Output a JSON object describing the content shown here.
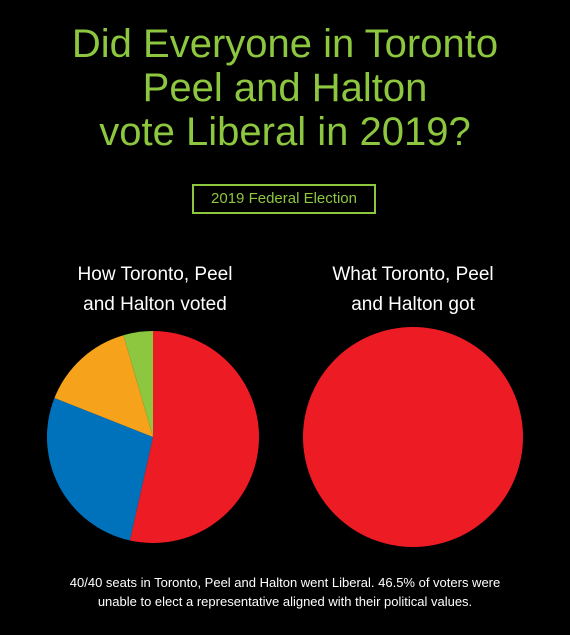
{
  "title_lines": [
    "Did Everyone in Toronto",
    "Peel and Halton",
    "vote Liberal in 2019?"
  ],
  "subtitle": "2019 Federal Election",
  "chart_data": [
    {
      "type": "pie",
      "title_lines": [
        "How Toronto, Peel",
        "and Halton voted"
      ],
      "slices": [
        {
          "value": 53.5,
          "color": "#ed1c24"
        },
        {
          "value": 27.5,
          "color": "#0072bc"
        },
        {
          "value": 14.5,
          "color": "#f7a21b"
        },
        {
          "value": 4.5,
          "color": "#8dc63f"
        }
      ]
    },
    {
      "type": "pie",
      "title_lines": [
        "What Toronto, Peel",
        "and Halton got"
      ],
      "slices": [
        {
          "value": 100,
          "color": "#ed1c24"
        }
      ]
    }
  ],
  "footer_lines": [
    "40/40 seats in Toronto, Peel and Halton went Liberal. 46.5% of voters were",
    "unable to elect a representative aligned with their political values."
  ],
  "colors": {
    "background": "#000000",
    "accent": "#8dc63f",
    "liberal": "#ed1c24",
    "conservative": "#0072bc",
    "ndp": "#f7a21b",
    "green": "#8dc63f"
  }
}
